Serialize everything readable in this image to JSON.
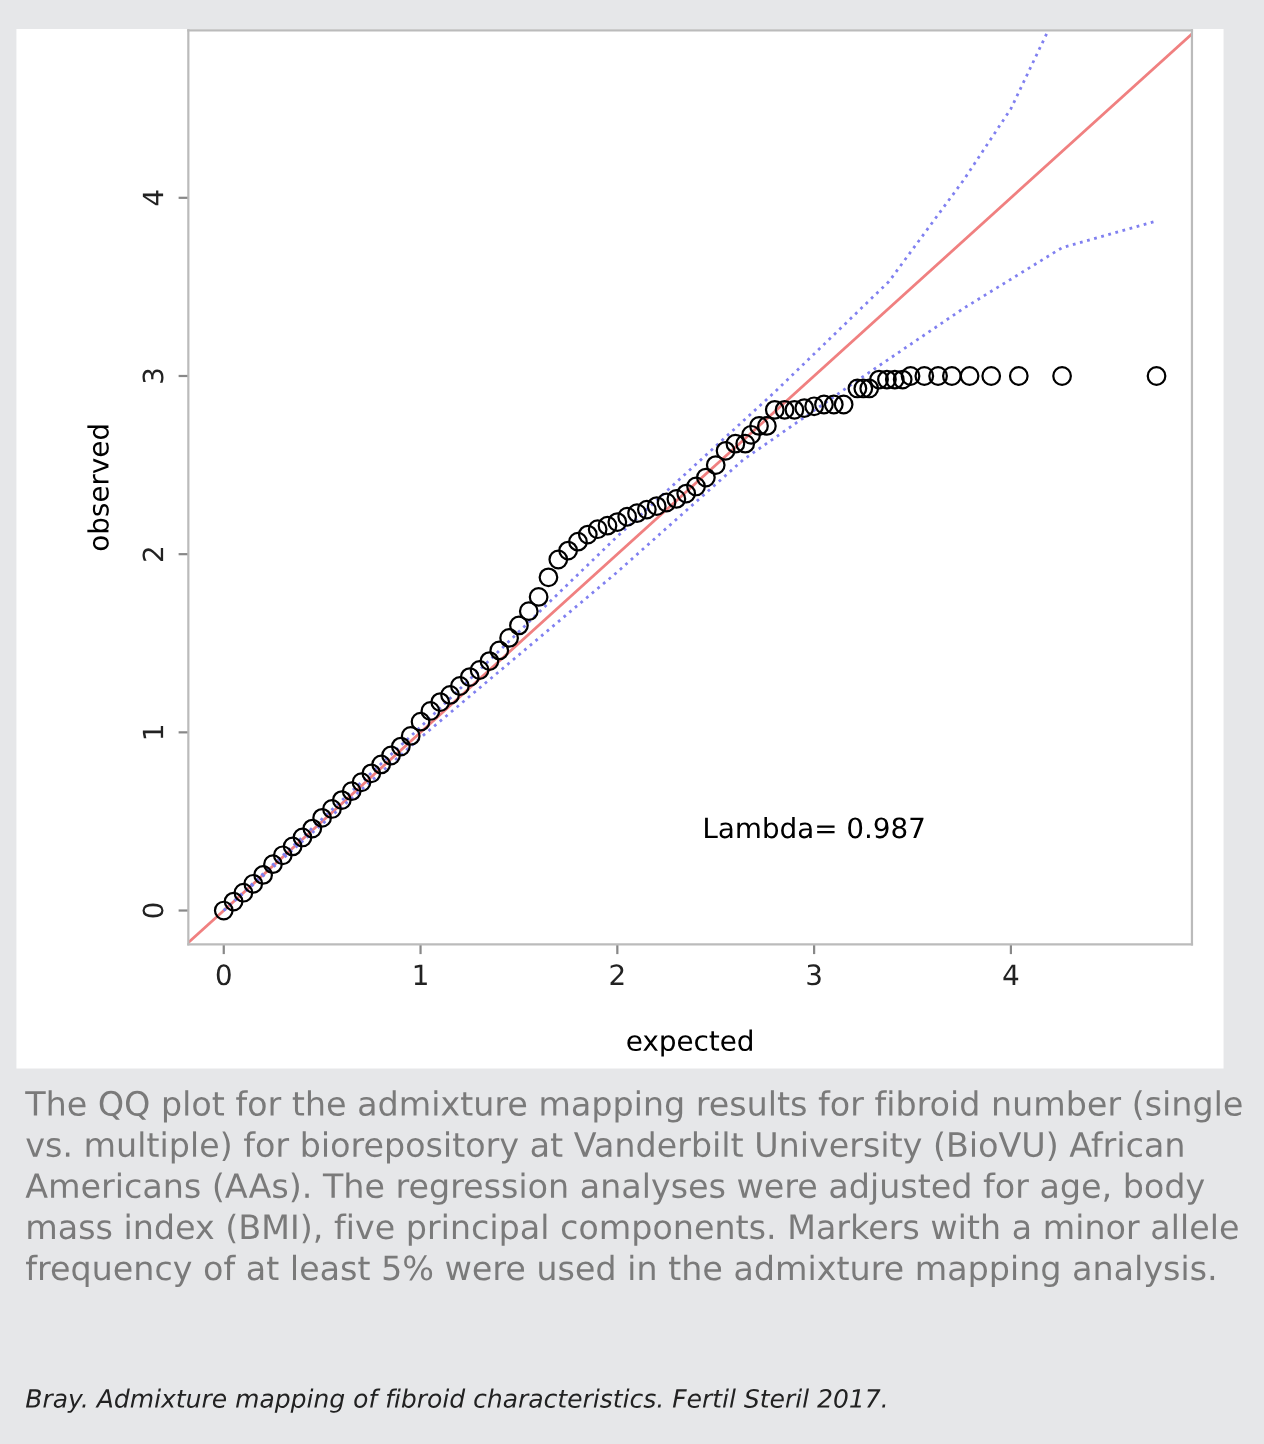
{
  "chart_data": {
    "type": "scatter",
    "xlabel": "expected",
    "ylabel": "observed",
    "xlim": [
      -0.18,
      4.92
    ],
    "ylim": [
      -0.19,
      4.94
    ],
    "xticks": [
      0,
      1,
      2,
      3,
      4
    ],
    "yticks": [
      0,
      1,
      2,
      3,
      4
    ],
    "grid": false,
    "legend": false,
    "marker": "circle",
    "series": [
      {
        "color": "#000000",
        "x": [
          0,
          0.05,
          0.1,
          0.15,
          0.2,
          0.25,
          0.3,
          0.35,
          0.4,
          0.45,
          0.5,
          0.55,
          0.6,
          0.65,
          0.7,
          0.75,
          0.8,
          0.85,
          0.9,
          0.95,
          1.0,
          1.05,
          1.1,
          1.15,
          1.2,
          1.25,
          1.3,
          1.35,
          1.4,
          1.45,
          1.5,
          1.55,
          1.6,
          1.65,
          1.7,
          1.75,
          1.8,
          1.85,
          1.9,
          1.95,
          2.0,
          2.05,
          2.1,
          2.15,
          2.2,
          2.25,
          2.3,
          2.35,
          2.4,
          2.45,
          2.5,
          2.55,
          2.6,
          2.65,
          2.68,
          2.72,
          2.76,
          2.8,
          2.85,
          2.9,
          2.95,
          3.0,
          3.05,
          3.1,
          3.15,
          3.22,
          3.25,
          3.28,
          3.33,
          3.37,
          3.41,
          3.45,
          3.49,
          3.56,
          3.63,
          3.7,
          3.79,
          3.9,
          4.04,
          4.26,
          4.74
        ],
        "values": [
          0,
          0.05,
          0.1,
          0.15,
          0.2,
          0.26,
          0.31,
          0.36,
          0.41,
          0.46,
          0.52,
          0.57,
          0.62,
          0.67,
          0.72,
          0.77,
          0.82,
          0.87,
          0.92,
          0.98,
          1.06,
          1.12,
          1.17,
          1.21,
          1.26,
          1.31,
          1.35,
          1.4,
          1.46,
          1.53,
          1.6,
          1.68,
          1.76,
          1.87,
          1.97,
          2.02,
          2.07,
          2.11,
          2.14,
          2.16,
          2.18,
          2.21,
          2.23,
          2.25,
          2.27,
          2.29,
          2.31,
          2.34,
          2.38,
          2.43,
          2.5,
          2.58,
          2.62,
          2.62,
          2.67,
          2.72,
          2.72,
          2.81,
          2.81,
          2.81,
          2.82,
          2.83,
          2.84,
          2.84,
          2.84,
          2.93,
          2.93,
          2.93,
          2.98,
          2.98,
          2.98,
          2.98,
          3.0,
          3.0,
          3.0,
          3.0,
          3.0,
          3.0,
          3.0,
          3.0,
          3.0
        ]
      },
      {
        "type": "line",
        "color": "#f08080",
        "line_style": "solid",
        "marker": "none",
        "x": [
          -0.18,
          4.92
        ],
        "values": [
          -0.18,
          4.92
        ]
      },
      {
        "type": "line",
        "color": "#8080f0",
        "line_style": "dotted",
        "marker": "none",
        "x": [
          0,
          1,
          2,
          2.8,
          3.38,
          3.76,
          4.0,
          4.19
        ],
        "values": [
          0,
          1.03,
          2.1,
          2.91,
          3.53,
          4.1,
          4.5,
          4.94
        ]
      },
      {
        "type": "line",
        "color": "#8080f0",
        "line_style": "dotted",
        "marker": "none",
        "x": [
          0,
          1,
          2,
          2.64,
          3.2,
          3.76,
          4.26,
          4.74
        ],
        "values": [
          0,
          0.97,
          1.9,
          2.53,
          2.96,
          3.38,
          3.72,
          3.87
        ]
      }
    ],
    "annotations": [
      "Lambda= 0.987",
      "The QQ plot for the admixture mapping results for fibroid number (single vs. multiple) for biorepository at Vanderbilt University (BioVU) African Americans (AAs). The regression analyses were adjusted for age, body mass index (BMI), five principal components. Markers with a minor allele frequency of at least 5% were used in the admixture mapping analysis.",
      "Bray. Admixture mapping of fibroid characteristics. Fertil Steril 2017."
    ]
  }
}
